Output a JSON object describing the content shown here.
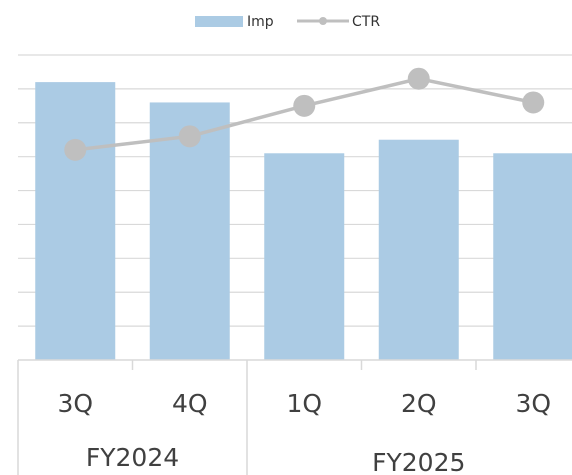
{
  "chart_data": {
    "type": "bar",
    "categories": [
      "3Q",
      "4Q",
      "1Q",
      "2Q",
      "3Q"
    ],
    "groups": [
      {
        "label": "FY2024",
        "span": 2
      },
      {
        "label": "FY2025",
        "span": 3
      }
    ],
    "series": [
      {
        "name": "Imp",
        "type": "bar",
        "values": [
          8.2,
          7.6,
          6.1,
          6.5,
          6.1
        ],
        "color": "#abcbe4"
      },
      {
        "name": "CTR",
        "type": "line",
        "values": [
          6.2,
          6.6,
          7.5,
          8.3,
          7.6
        ],
        "color": "#bfbfbf"
      }
    ],
    "ylim": [
      0,
      9
    ],
    "y_gridlines": 9,
    "grid": true,
    "legend": "top-center"
  }
}
